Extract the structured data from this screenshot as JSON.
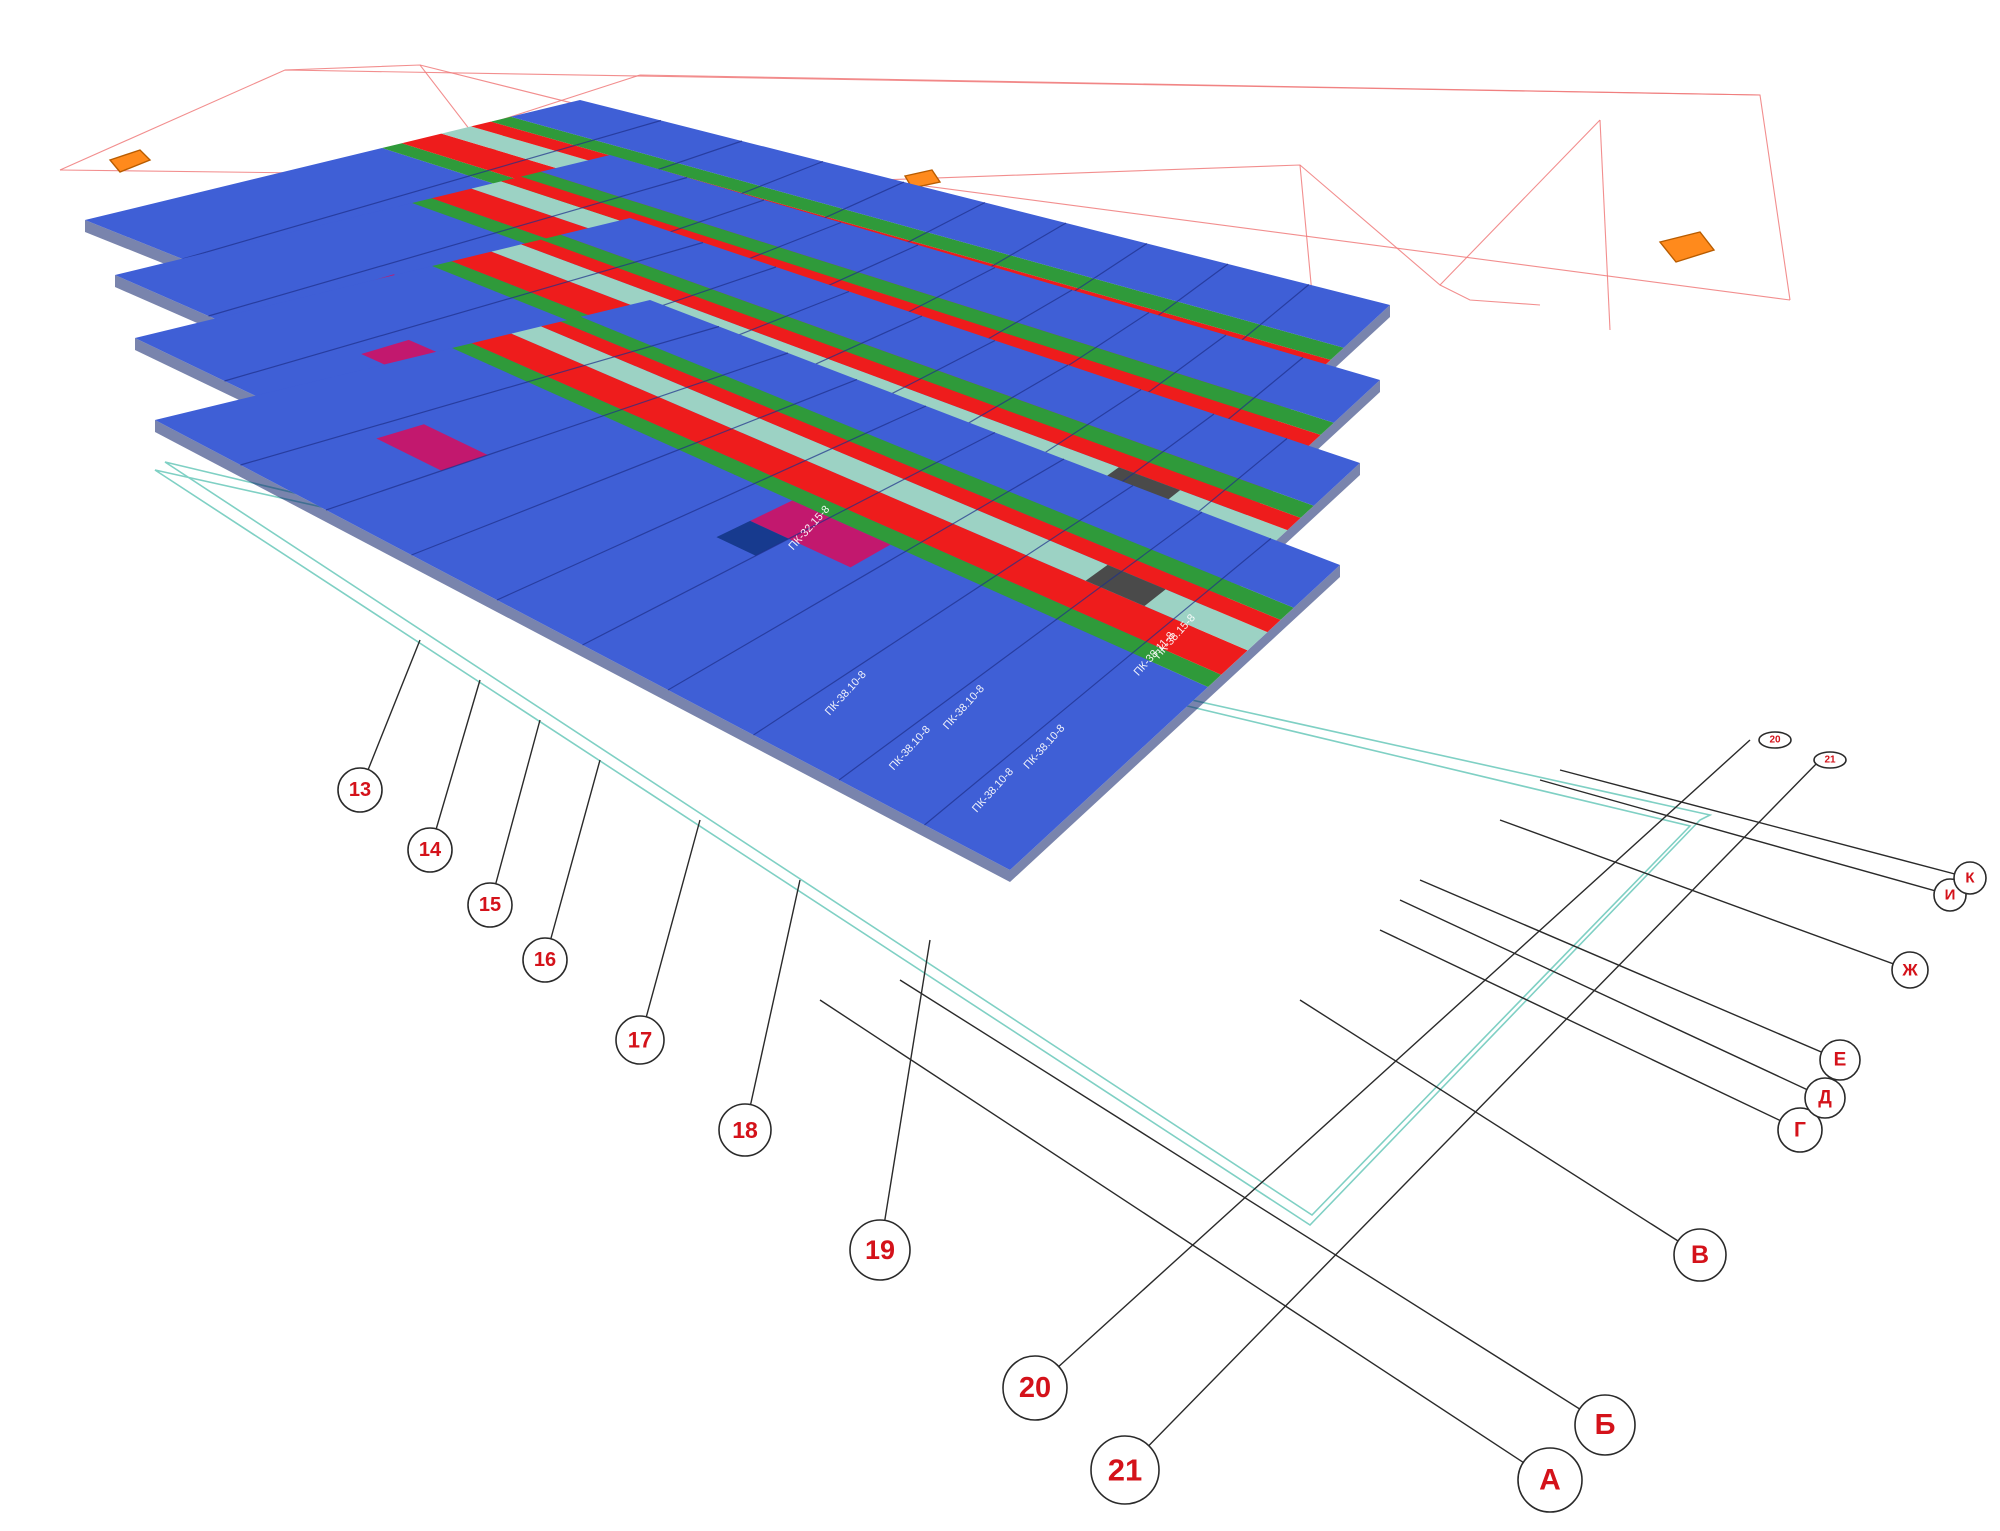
{
  "diagram": {
    "panel_labels": {
      "main": "ПК-38.10-8",
      "red": "ПК-38.15-8",
      "green": "ПК-38.11-8",
      "magenta": "ПК-32.15-8"
    },
    "numeric_axes": [
      "13",
      "14",
      "15",
      "16",
      "17",
      "18",
      "19",
      "20",
      "21"
    ],
    "letter_axes": [
      "А",
      "Б",
      "В",
      "Г",
      "Д",
      "Е",
      "Ж",
      "И",
      "К"
    ],
    "small_labels": [
      "20",
      "21"
    ],
    "colors": {
      "slab": "#3f5fd6",
      "red_strip": "#ee1c1c",
      "green_strip": "#2f9a3a",
      "mint_strip": "#9cd2c4",
      "grey_strip": "#4a4a4a",
      "magenta_strip": "#c2186e",
      "axis_label": "#d4121a",
      "roof_outline": "#f07a7a",
      "foundation_outline": "#7fd0c4",
      "roof_hatch": "#ff8a1c"
    }
  }
}
